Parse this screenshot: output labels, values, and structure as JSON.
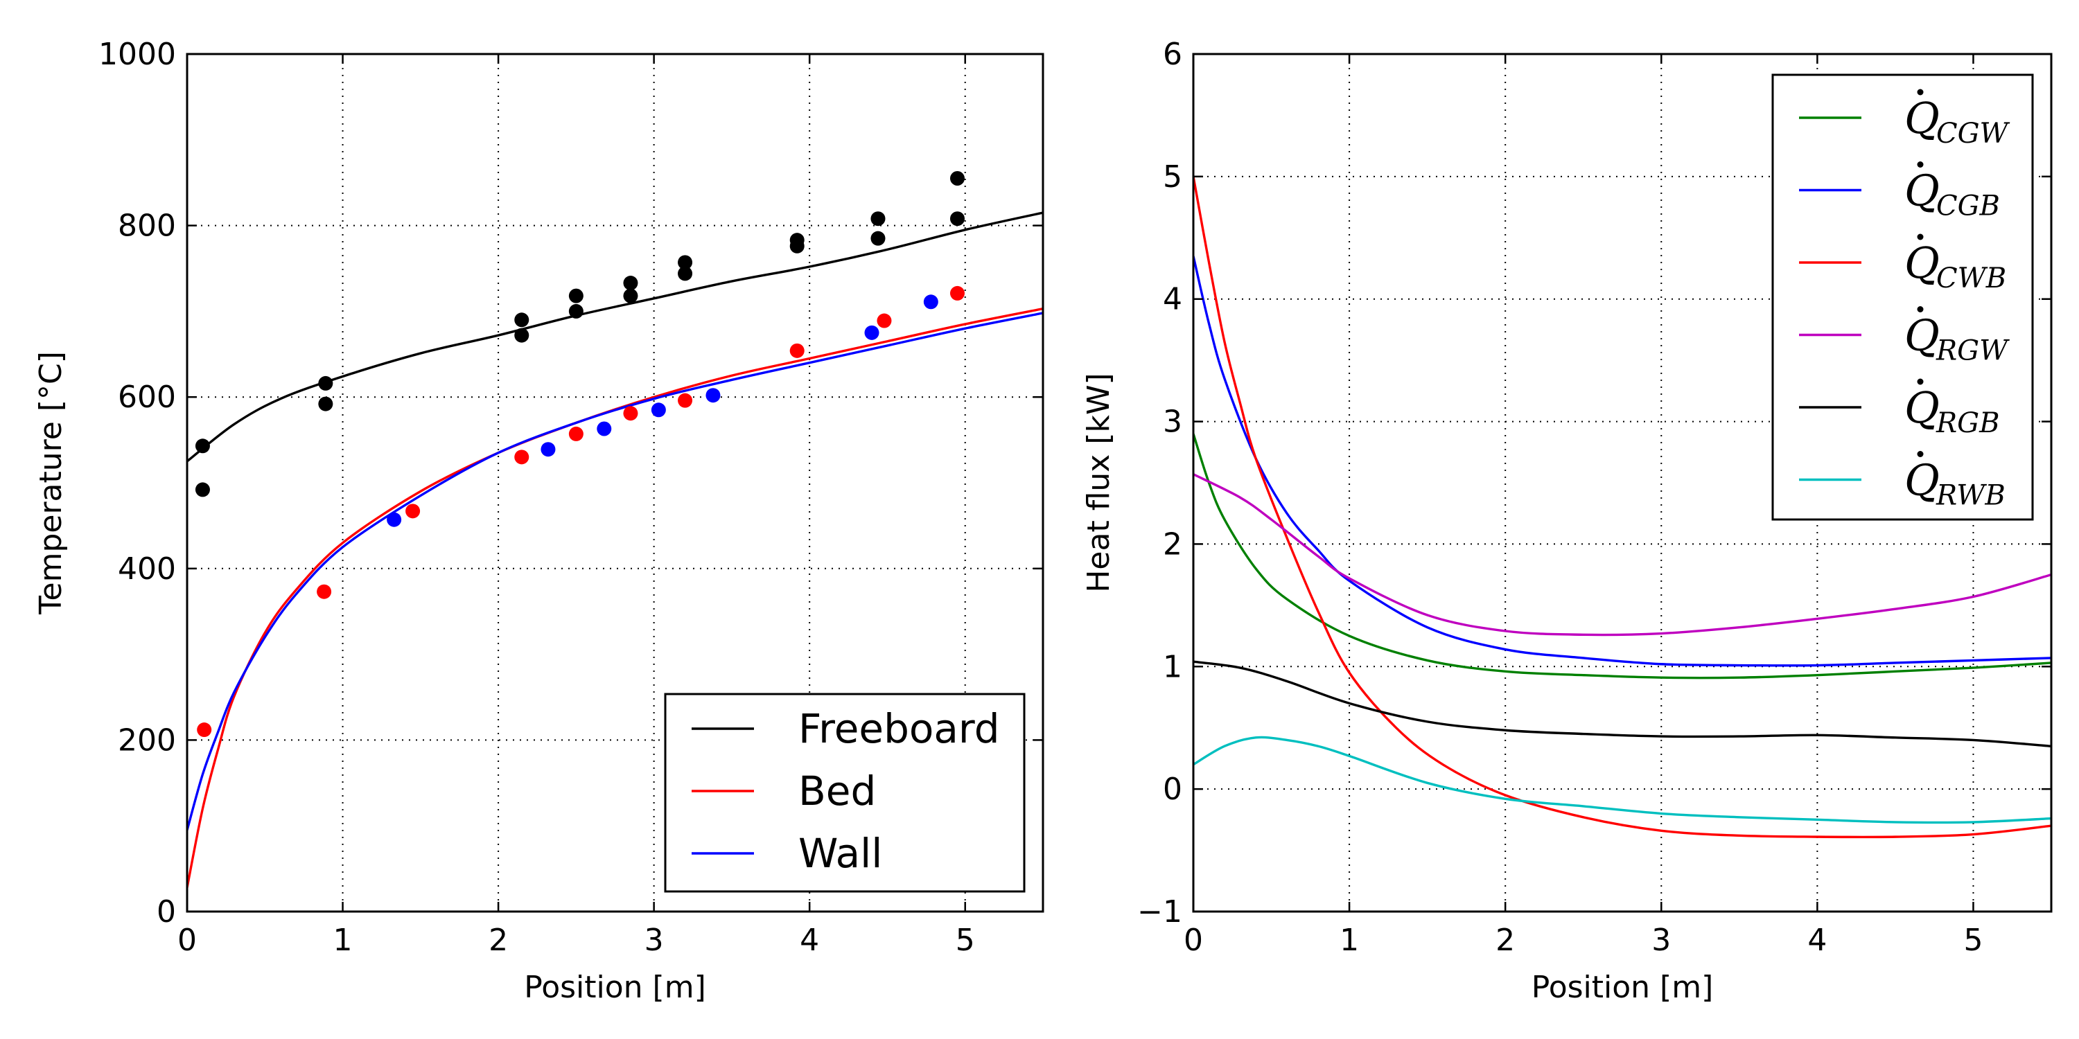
{
  "chart_data": [
    {
      "type": "line",
      "xlabel": "Position [m]",
      "ylabel": "Temperature [°C]",
      "xlim": [
        0,
        5.5
      ],
      "ylim": [
        0,
        1000
      ],
      "xticks": [
        0,
        1,
        2,
        3,
        4,
        5
      ],
      "yticks": [
        0,
        200,
        400,
        600,
        800,
        1000
      ],
      "grid": true,
      "legend_position": "bottom-right",
      "series": [
        {
          "name": "Freeboard",
          "kind": "line",
          "color": "#000000",
          "points": [
            [
              0,
              525
            ],
            [
              0.3,
              568
            ],
            [
              0.6,
              598
            ],
            [
              1,
              624
            ],
            [
              1.5,
              651
            ],
            [
              2,
              672
            ],
            [
              2.5,
              695
            ],
            [
              3,
              715
            ],
            [
              3.5,
              735
            ],
            [
              4,
              752
            ],
            [
              4.5,
              772
            ],
            [
              5,
              795
            ],
            [
              5.5,
              815
            ]
          ]
        },
        {
          "name": "Bed",
          "kind": "line",
          "color": "#ff0000",
          "points": [
            [
              0,
              28
            ],
            [
              0.1,
              120
            ],
            [
              0.2,
              190
            ],
            [
              0.3,
              250
            ],
            [
              0.5,
              325
            ],
            [
              0.7,
              375
            ],
            [
              1,
              430
            ],
            [
              1.5,
              490
            ],
            [
              2,
              535
            ],
            [
              2.5,
              570
            ],
            [
              3,
              600
            ],
            [
              3.5,
              625
            ],
            [
              4,
              645
            ],
            [
              4.5,
              665
            ],
            [
              5,
              685
            ],
            [
              5.5,
              703
            ]
          ]
        },
        {
          "name": "Wall",
          "kind": "line",
          "color": "#0000ff",
          "points": [
            [
              0,
              95
            ],
            [
              0.1,
              160
            ],
            [
              0.2,
              210
            ],
            [
              0.3,
              255
            ],
            [
              0.5,
              320
            ],
            [
              0.7,
              370
            ],
            [
              1,
              425
            ],
            [
              1.5,
              485
            ],
            [
              2,
              535
            ],
            [
              2.5,
              570
            ],
            [
              3,
              598
            ],
            [
              3.5,
              620
            ],
            [
              4,
              640
            ],
            [
              4.5,
              660
            ],
            [
              5,
              680
            ],
            [
              5.5,
              698
            ]
          ]
        },
        {
          "kind": "scatter",
          "color": "#000000",
          "points": [
            [
              0.1,
              543
            ],
            [
              0.1,
              492
            ],
            [
              0.89,
              616
            ],
            [
              0.89,
              592
            ],
            [
              2.15,
              690
            ],
            [
              2.15,
              672
            ],
            [
              2.5,
              718
            ],
            [
              2.5,
              700
            ],
            [
              2.85,
              733
            ],
            [
              2.85,
              718
            ],
            [
              3.2,
              757
            ],
            [
              3.2,
              744
            ],
            [
              3.92,
              783
            ],
            [
              3.92,
              776
            ],
            [
              4.44,
              808
            ],
            [
              4.44,
              785
            ],
            [
              4.95,
              855
            ],
            [
              4.95,
              808
            ]
          ]
        },
        {
          "kind": "scatter",
          "color": "#ff0000",
          "points": [
            [
              0.11,
              212
            ],
            [
              0.88,
              373
            ],
            [
              1.45,
              467
            ],
            [
              2.15,
              530
            ],
            [
              2.5,
              557
            ],
            [
              2.85,
              581
            ],
            [
              3.2,
              596
            ],
            [
              3.92,
              654
            ],
            [
              4.48,
              689
            ],
            [
              4.95,
              721
            ]
          ]
        },
        {
          "kind": "scatter",
          "color": "#0000ff",
          "points": [
            [
              1.33,
              457
            ],
            [
              2.32,
              539
            ],
            [
              2.68,
              563
            ],
            [
              3.03,
              585
            ],
            [
              3.38,
              602
            ],
            [
              4.4,
              675
            ],
            [
              4.78,
              711
            ]
          ]
        }
      ]
    },
    {
      "type": "line",
      "xlabel": "Position [m]",
      "ylabel": "Heat flux [kW]",
      "xlim": [
        0,
        5.5
      ],
      "ylim": [
        -1,
        6
      ],
      "xticks": [
        0,
        1,
        2,
        3,
        4,
        5
      ],
      "yticks": [
        -1,
        0,
        1,
        2,
        3,
        4,
        5,
        6
      ],
      "grid": true,
      "legend_position": "top-right",
      "series": [
        {
          "name_base": "Q",
          "name_sub": "CGW",
          "color": "#008000",
          "points": [
            [
              0,
              2.9
            ],
            [
              0.1,
              2.5
            ],
            [
              0.2,
              2.2
            ],
            [
              0.4,
              1.8
            ],
            [
              0.6,
              1.55
            ],
            [
              1,
              1.25
            ],
            [
              1.5,
              1.05
            ],
            [
              2,
              0.96
            ],
            [
              2.5,
              0.93
            ],
            [
              3,
              0.91
            ],
            [
              3.5,
              0.91
            ],
            [
              4,
              0.93
            ],
            [
              4.5,
              0.96
            ],
            [
              5,
              0.99
            ],
            [
              5.5,
              1.03
            ]
          ]
        },
        {
          "name_base": "Q",
          "name_sub": "CGB",
          "color": "#0000ff",
          "points": [
            [
              0,
              4.35
            ],
            [
              0.1,
              3.8
            ],
            [
              0.2,
              3.35
            ],
            [
              0.4,
              2.7
            ],
            [
              0.6,
              2.25
            ],
            [
              0.8,
              1.95
            ],
            [
              1,
              1.7
            ],
            [
              1.5,
              1.32
            ],
            [
              2,
              1.14
            ],
            [
              2.5,
              1.07
            ],
            [
              3,
              1.02
            ],
            [
              3.5,
              1.01
            ],
            [
              4,
              1.01
            ],
            [
              4.5,
              1.03
            ],
            [
              5,
              1.05
            ],
            [
              5.5,
              1.07
            ]
          ]
        },
        {
          "name_base": "Q",
          "name_sub": "CWB",
          "color": "#ff0000",
          "points": [
            [
              0,
              5.0
            ],
            [
              0.1,
              4.3
            ],
            [
              0.2,
              3.65
            ],
            [
              0.3,
              3.15
            ],
            [
              0.4,
              2.7
            ],
            [
              0.6,
              2.05
            ],
            [
              0.8,
              1.45
            ],
            [
              1,
              0.95
            ],
            [
              1.3,
              0.5
            ],
            [
              1.6,
              0.2
            ],
            [
              2,
              -0.05
            ],
            [
              2.5,
              -0.23
            ],
            [
              3,
              -0.34
            ],
            [
              3.5,
              -0.38
            ],
            [
              4,
              -0.39
            ],
            [
              4.5,
              -0.39
            ],
            [
              5,
              -0.37
            ],
            [
              5.5,
              -0.3
            ]
          ]
        },
        {
          "name_base": "Q",
          "name_sub": "RGW",
          "color": "#bf00bf",
          "points": [
            [
              0,
              2.57
            ],
            [
              0.3,
              2.38
            ],
            [
              0.5,
              2.2
            ],
            [
              0.8,
              1.9
            ],
            [
              1,
              1.72
            ],
            [
              1.5,
              1.42
            ],
            [
              2,
              1.29
            ],
            [
              2.5,
              1.26
            ],
            [
              3,
              1.27
            ],
            [
              3.5,
              1.32
            ],
            [
              4,
              1.39
            ],
            [
              4.5,
              1.47
            ],
            [
              5,
              1.57
            ],
            [
              5.5,
              1.75
            ]
          ]
        },
        {
          "name_base": "Q",
          "name_sub": "RGB",
          "color": "#000000",
          "points": [
            [
              0,
              1.04
            ],
            [
              0.3,
              0.99
            ],
            [
              0.6,
              0.88
            ],
            [
              1,
              0.7
            ],
            [
              1.5,
              0.55
            ],
            [
              2,
              0.48
            ],
            [
              2.5,
              0.45
            ],
            [
              3,
              0.43
            ],
            [
              3.5,
              0.43
            ],
            [
              4,
              0.44
            ],
            [
              4.5,
              0.42
            ],
            [
              5,
              0.4
            ],
            [
              5.5,
              0.35
            ]
          ]
        },
        {
          "name_base": "Q",
          "name_sub": "RWB",
          "color": "#00bfbf",
          "points": [
            [
              0,
              0.2
            ],
            [
              0.2,
              0.35
            ],
            [
              0.4,
              0.42
            ],
            [
              0.6,
              0.4
            ],
            [
              0.8,
              0.35
            ],
            [
              1,
              0.27
            ],
            [
              1.5,
              0.05
            ],
            [
              2,
              -0.08
            ],
            [
              2.5,
              -0.14
            ],
            [
              3,
              -0.2
            ],
            [
              3.5,
              -0.23
            ],
            [
              4,
              -0.25
            ],
            [
              4.5,
              -0.27
            ],
            [
              5,
              -0.27
            ],
            [
              5.5,
              -0.24
            ]
          ]
        }
      ]
    }
  ]
}
